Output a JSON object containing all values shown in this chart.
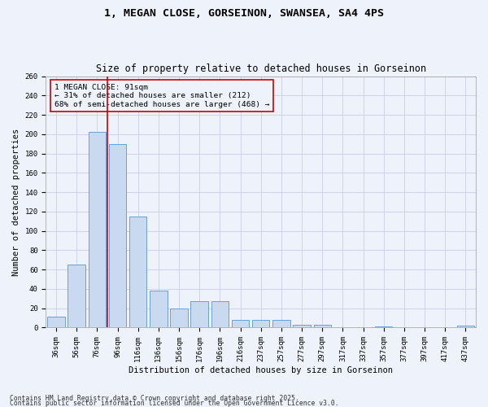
{
  "title_line1": "1, MEGAN CLOSE, GORSEINON, SWANSEA, SA4 4PS",
  "title_line2": "Size of property relative to detached houses in Gorseinon",
  "xlabel": "Distribution of detached houses by size in Gorseinon",
  "ylabel": "Number of detached properties",
  "categories": [
    "36sqm",
    "56sqm",
    "76sqm",
    "96sqm",
    "116sqm",
    "136sqm",
    "156sqm",
    "176sqm",
    "196sqm",
    "216sqm",
    "237sqm",
    "257sqm",
    "277sqm",
    "297sqm",
    "317sqm",
    "337sqm",
    "357sqm",
    "377sqm",
    "397sqm",
    "417sqm",
    "437sqm"
  ],
  "values": [
    11,
    65,
    202,
    190,
    115,
    38,
    20,
    27,
    27,
    8,
    8,
    8,
    3,
    3,
    0,
    0,
    1,
    0,
    0,
    0,
    2
  ],
  "bar_color": "#c9d9ef",
  "bar_edge_color": "#6a9fd8",
  "marker_label": "1 MEGAN CLOSE: 91sqm",
  "marker_line1": "← 31% of detached houses are smaller (212)",
  "marker_line2": "68% of semi-detached houses are larger (468) →",
  "marker_color": "#cc0000",
  "annotation_box_color": "#cc0000",
  "bg_color": "#eef2fb",
  "grid_color": "#c8cfe8",
  "ylim": [
    0,
    260
  ],
  "yticks": [
    0,
    20,
    40,
    60,
    80,
    100,
    120,
    140,
    160,
    180,
    200,
    220,
    240,
    260
  ],
  "footnote1": "Contains HM Land Registry data © Crown copyright and database right 2025.",
  "footnote2": "Contains public sector information licensed under the Open Government Licence v3.0.",
  "title_fontsize": 9.5,
  "subtitle_fontsize": 8.5,
  "axis_label_fontsize": 7.5,
  "tick_fontsize": 6.5,
  "annotation_fontsize": 6.8,
  "footnote_fontsize": 5.8
}
